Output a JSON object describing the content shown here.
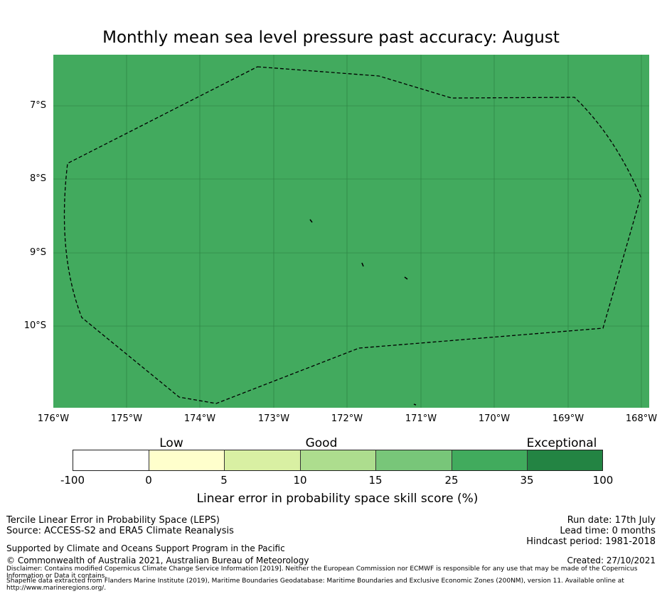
{
  "title": "Monthly mean sea level pressure past accuracy: August",
  "map": {
    "fill_color": "#42aa5e",
    "lat_labels": [
      "7°S",
      "8°S",
      "9°S",
      "10°S"
    ],
    "lon_labels": [
      "176°W",
      "175°W",
      "174°W",
      "173°W",
      "172°W",
      "171°W",
      "170°W",
      "169°W",
      "168°W"
    ],
    "boundary": "Maritime boundary (EEZ) shown as dashed line"
  },
  "legend": {
    "categories": [
      "Low",
      "Good",
      "Exceptional"
    ],
    "ticks": [
      "-100",
      "0",
      "5",
      "10",
      "15",
      "25",
      "35",
      "100"
    ],
    "colors": [
      "#ffffff",
      "#ffffcc",
      "#d9f0a3",
      "#addd8e",
      "#78c679",
      "#41ab5d",
      "#238443"
    ],
    "label": "Linear error in probability space skill score (%)"
  },
  "footer": {
    "left1": "Tercile Linear Error in Probability Space (LEPS)",
    "left2": "Source: ACCESS-S2 and ERA5 Climate Reanalysis",
    "supported": "Supported by Climate and Oceans Support Program in the Pacific",
    "copyright": "© Commonwealth of Australia 2021, Australian Bureau of Meteorology",
    "run_date": "Run date: 17th July",
    "lead_time": "Lead time: 0 months",
    "hindcast": "Hindcast period: 1981-2018",
    "created": "Created: 27/10/2021",
    "disclaimer": "Disclaimer: Contains modified Copernicus Climate Change Service Information [2019]. Neither the European Commission nor ECMWF is responsible for any use that may be made of the Copernicus Information or Data it contains.",
    "shapefile": "Shapefile data extracted from Flanders Marine Institute (2019), Maritime Boundaries Geodatabase: Maritime Boundaries and Exclusive Economic Zones (200NM), version 11. Available online at http://www.marineregions.org/."
  }
}
